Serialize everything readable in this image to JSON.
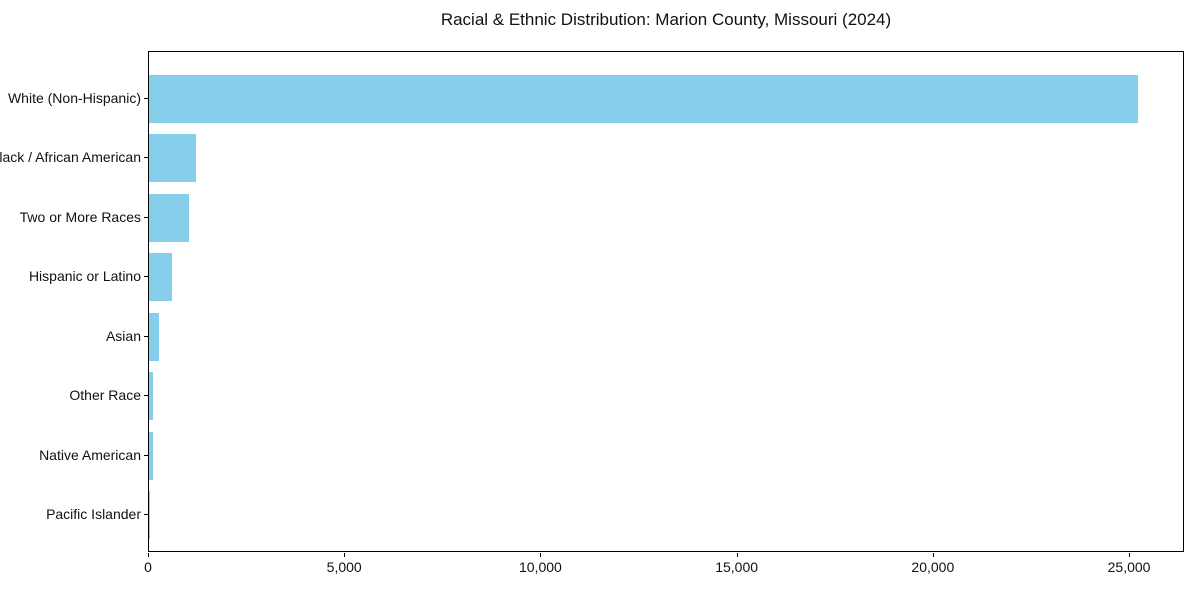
{
  "window": {
    "background": "#ffffff"
  },
  "chart_data": {
    "type": "bar",
    "orientation": "horizontal",
    "title": "Racial & Ethnic Distribution: Marion County, Missouri (2024)",
    "categories": [
      "White (Non-Hispanic)",
      "Black / African American",
      "Two or More Races",
      "Hispanic or Latino",
      "Asian",
      "Other Race",
      "Native American",
      "Pacific Islander"
    ],
    "values": [
      25200,
      1200,
      1010,
      590,
      260,
      100,
      90,
      20
    ],
    "xlabel": "",
    "ylabel": "",
    "xlim": [
      0,
      26400
    ],
    "x_ticks": [
      0,
      5000,
      10000,
      15000,
      20000,
      25000
    ],
    "x_tick_labels": [
      "0",
      "5,000",
      "10,000",
      "15,000",
      "20,000",
      "25,000"
    ],
    "bar_color": "#87CEEB",
    "spine_color": "#000000",
    "text_color": "#111111",
    "grid": false,
    "legend": null
  }
}
